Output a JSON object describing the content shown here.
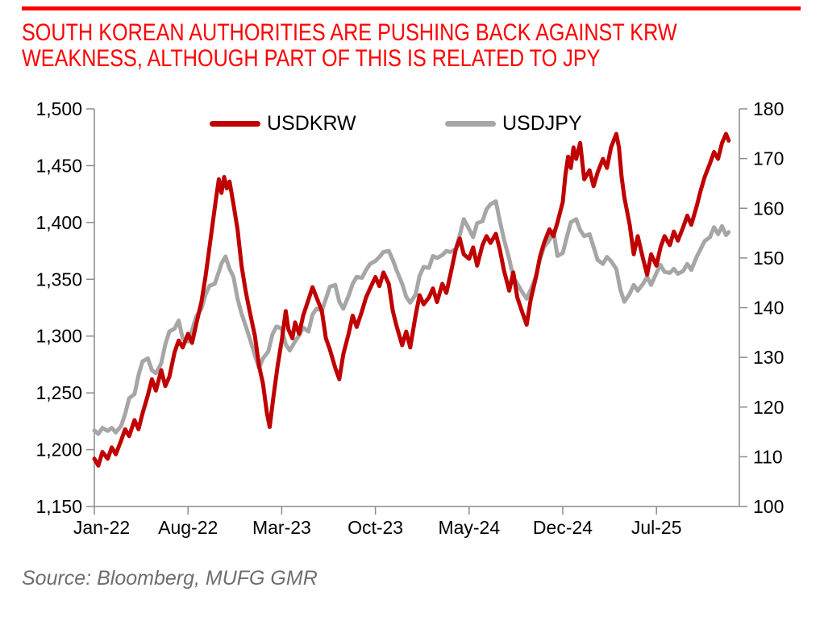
{
  "page": {
    "background": "#FFFFFF"
  },
  "header": {
    "rule_color": "#FF0000",
    "title_color": "#FF0000",
    "title_lines": [
      "SOUTH KOREAN AUTHORITIES ARE PUSHING BACK AGAINST KRW",
      "WEAKNESS, ALTHOUGH PART OF THIS IS RELATED TO JPY"
    ]
  },
  "legend": {
    "items": [
      {
        "label": "USDKRW",
        "color": "#C00000"
      },
      {
        "label": "USDJPY",
        "color": "#A6A6A6"
      }
    ]
  },
  "footer": {
    "source": "Source: Bloomberg, MUFG GMR"
  },
  "chart_data": {
    "type": "line",
    "title": "SOUTH KOREAN AUTHORITIES ARE PUSHING BACK AGAINST KRW WEAKNESS, ALTHOUGH PART OF THIS IS RELATED TO JPY",
    "grid": false,
    "legend_position": "top-center",
    "axis_color": "#8C8C8C",
    "x_unit": "months since Jan-2022",
    "x_tick_months": [
      0,
      7,
      14,
      21,
      28,
      35,
      42
    ],
    "x_tick_labels": [
      "Jan-22",
      "Aug-22",
      "Mar-23",
      "Oct-23",
      "May-24",
      "Dec-24",
      "Jul-25"
    ],
    "left_axis": {
      "series": "USDKRW",
      "min": 1150,
      "max": 1500,
      "values": [
        1150,
        1200,
        1250,
        1300,
        1350,
        1400,
        1450,
        1500
      ],
      "labels": [
        "1,150",
        "1,200",
        "1,250",
        "1,300",
        "1,350",
        "1,400",
        "1,450",
        "1,500"
      ]
    },
    "right_axis": {
      "series": "USDJPY",
      "min": 100,
      "max": 180,
      "values": [
        100,
        110,
        120,
        130,
        140,
        150,
        160,
        170,
        180
      ],
      "labels": [
        "100",
        "110",
        "120",
        "130",
        "140",
        "150",
        "160",
        "170",
        "180"
      ]
    },
    "series": [
      {
        "name": "USDKRW",
        "axis": "left",
        "color": "#C00000",
        "points": [
          [
            0,
            1192
          ],
          [
            0.3,
            1186
          ],
          [
            0.6,
            1198
          ],
          [
            1,
            1192
          ],
          [
            1.3,
            1202
          ],
          [
            1.6,
            1196
          ],
          [
            2,
            1208
          ],
          [
            2.3,
            1218
          ],
          [
            2.6,
            1212
          ],
          [
            3,
            1226
          ],
          [
            3.3,
            1218
          ],
          [
            3.6,
            1232
          ],
          [
            4,
            1248
          ],
          [
            4.3,
            1262
          ],
          [
            4.6,
            1252
          ],
          [
            5,
            1270
          ],
          [
            5.3,
            1256
          ],
          [
            5.6,
            1264
          ],
          [
            6,
            1286
          ],
          [
            6.3,
            1296
          ],
          [
            6.6,
            1290
          ],
          [
            7,
            1302
          ],
          [
            7.3,
            1294
          ],
          [
            7.6,
            1310
          ],
          [
            8,
            1330
          ],
          [
            8.3,
            1352
          ],
          [
            8.6,
            1378
          ],
          [
            8.9,
            1404
          ],
          [
            9.1,
            1422
          ],
          [
            9.3,
            1438
          ],
          [
            9.5,
            1426
          ],
          [
            9.7,
            1440
          ],
          [
            9.9,
            1430
          ],
          [
            10.1,
            1436
          ],
          [
            10.4,
            1416
          ],
          [
            10.7,
            1394
          ],
          [
            11,
            1362
          ],
          [
            11.3,
            1340
          ],
          [
            11.6,
            1322
          ],
          [
            12,
            1300
          ],
          [
            12.3,
            1274
          ],
          [
            12.6,
            1258
          ],
          [
            12.9,
            1232
          ],
          [
            13.1,
            1220
          ],
          [
            13.4,
            1248
          ],
          [
            13.7,
            1274
          ],
          [
            14,
            1296
          ],
          [
            14.3,
            1322
          ],
          [
            14.5,
            1306
          ],
          [
            14.8,
            1298
          ],
          [
            15,
            1312
          ],
          [
            15.3,
            1302
          ],
          [
            15.6,
            1318
          ],
          [
            16,
            1332
          ],
          [
            16.3,
            1343
          ],
          [
            16.6,
            1334
          ],
          [
            17,
            1322
          ],
          [
            17.3,
            1298
          ],
          [
            17.6,
            1288
          ],
          [
            18,
            1272
          ],
          [
            18.3,
            1262
          ],
          [
            18.6,
            1284
          ],
          [
            19,
            1302
          ],
          [
            19.3,
            1318
          ],
          [
            19.6,
            1308
          ],
          [
            20,
            1322
          ],
          [
            20.3,
            1334
          ],
          [
            20.6,
            1342
          ],
          [
            21,
            1352
          ],
          [
            21.3,
            1344
          ],
          [
            21.6,
            1356
          ],
          [
            22,
            1346
          ],
          [
            22.3,
            1322
          ],
          [
            22.6,
            1308
          ],
          [
            23,
            1292
          ],
          [
            23.3,
            1304
          ],
          [
            23.6,
            1290
          ],
          [
            24,
            1318
          ],
          [
            24.3,
            1336
          ],
          [
            24.6,
            1328
          ],
          [
            25,
            1334
          ],
          [
            25.3,
            1342
          ],
          [
            25.6,
            1330
          ],
          [
            26,
            1346
          ],
          [
            26.3,
            1338
          ],
          [
            26.6,
            1354
          ],
          [
            27,
            1376
          ],
          [
            27.3,
            1386
          ],
          [
            27.6,
            1372
          ],
          [
            28,
            1368
          ],
          [
            28.3,
            1378
          ],
          [
            28.6,
            1362
          ],
          [
            29,
            1380
          ],
          [
            29.3,
            1388
          ],
          [
            29.6,
            1382
          ],
          [
            30,
            1390
          ],
          [
            30.3,
            1376
          ],
          [
            30.6,
            1358
          ],
          [
            31,
            1340
          ],
          [
            31.3,
            1356
          ],
          [
            31.6,
            1334
          ],
          [
            32,
            1320
          ],
          [
            32.3,
            1310
          ],
          [
            32.6,
            1332
          ],
          [
            33,
            1352
          ],
          [
            33.3,
            1370
          ],
          [
            33.6,
            1382
          ],
          [
            34,
            1394
          ],
          [
            34.3,
            1388
          ],
          [
            34.6,
            1400
          ],
          [
            35,
            1418
          ],
          [
            35.2,
            1442
          ],
          [
            35.4,
            1458
          ],
          [
            35.6,
            1448
          ],
          [
            35.8,
            1466
          ],
          [
            36,
            1456
          ],
          [
            36.3,
            1470
          ],
          [
            36.6,
            1438
          ],
          [
            37,
            1446
          ],
          [
            37.3,
            1432
          ],
          [
            37.6,
            1444
          ],
          [
            38,
            1456
          ],
          [
            38.3,
            1448
          ],
          [
            38.6,
            1466
          ],
          [
            39,
            1478
          ],
          [
            39.2,
            1466
          ],
          [
            39.4,
            1440
          ],
          [
            39.6,
            1422
          ],
          [
            40,
            1398
          ],
          [
            40.3,
            1372
          ],
          [
            40.6,
            1388
          ],
          [
            41,
            1368
          ],
          [
            41.3,
            1354
          ],
          [
            41.6,
            1372
          ],
          [
            42,
            1362
          ],
          [
            42.3,
            1378
          ],
          [
            42.6,
            1388
          ],
          [
            43,
            1380
          ],
          [
            43.3,
            1392
          ],
          [
            43.6,
            1384
          ],
          [
            44,
            1396
          ],
          [
            44.3,
            1406
          ],
          [
            44.6,
            1398
          ],
          [
            45,
            1414
          ],
          [
            45.3,
            1428
          ],
          [
            45.6,
            1440
          ],
          [
            46,
            1452
          ],
          [
            46.3,
            1462
          ],
          [
            46.6,
            1456
          ],
          [
            46.9,
            1470
          ],
          [
            47.2,
            1478
          ],
          [
            47.4,
            1472
          ]
        ]
      },
      {
        "name": "USDJPY",
        "axis": "right",
        "color": "#A6A6A6",
        "points": [
          [
            0,
            115.3
          ],
          [
            0.3,
            114.6
          ],
          [
            0.6,
            115.8
          ],
          [
            1,
            115.2
          ],
          [
            1.3,
            115.8
          ],
          [
            1.6,
            114.9
          ],
          [
            2,
            116.2
          ],
          [
            2.3,
            118.6
          ],
          [
            2.6,
            121.8
          ],
          [
            3,
            122.6
          ],
          [
            3.3,
            126.4
          ],
          [
            3.6,
            129.2
          ],
          [
            4,
            129.8
          ],
          [
            4.3,
            127.4
          ],
          [
            4.6,
            126.8
          ],
          [
            5,
            128.8
          ],
          [
            5.3,
            132.6
          ],
          [
            5.6,
            135.2
          ],
          [
            6,
            135.8
          ],
          [
            6.3,
            137.4
          ],
          [
            6.6,
            133.8
          ],
          [
            7,
            133.2
          ],
          [
            7.3,
            135.4
          ],
          [
            7.6,
            138.2
          ],
          [
            8,
            139.8
          ],
          [
            8.3,
            142.6
          ],
          [
            8.6,
            144.4
          ],
          [
            9,
            144.8
          ],
          [
            9.3,
            147.2
          ],
          [
            9.5,
            148.9
          ],
          [
            9.8,
            150.3
          ],
          [
            10.1,
            147.8
          ],
          [
            10.4,
            146.2
          ],
          [
            10.7,
            141.8
          ],
          [
            11,
            138.8
          ],
          [
            11.3,
            136.4
          ],
          [
            11.6,
            133.9
          ],
          [
            12,
            130.4
          ],
          [
            12.3,
            127.9
          ],
          [
            12.6,
            129.8
          ],
          [
            13,
            131.2
          ],
          [
            13.3,
            134.6
          ],
          [
            13.6,
            136.2
          ],
          [
            14,
            135.8
          ],
          [
            14.3,
            132.6
          ],
          [
            14.6,
            131.4
          ],
          [
            15,
            133.2
          ],
          [
            15.3,
            134.4
          ],
          [
            15.6,
            136
          ],
          [
            16,
            135.2
          ],
          [
            16.3,
            138.6
          ],
          [
            16.6,
            139.8
          ],
          [
            17,
            139.4
          ],
          [
            17.3,
            141.8
          ],
          [
            17.6,
            144.2
          ],
          [
            18,
            144.6
          ],
          [
            18.3,
            141.2
          ],
          [
            18.6,
            139.8
          ],
          [
            19,
            142.4
          ],
          [
            19.3,
            144.8
          ],
          [
            19.6,
            146.2
          ],
          [
            20,
            146
          ],
          [
            20.3,
            147.6
          ],
          [
            20.6,
            148.8
          ],
          [
            21,
            149.4
          ],
          [
            21.3,
            150.2
          ],
          [
            21.6,
            151.2
          ],
          [
            22,
            151.4
          ],
          [
            22.3,
            149.6
          ],
          [
            22.6,
            147.4
          ],
          [
            23,
            144.8
          ],
          [
            23.3,
            142.2
          ],
          [
            23.6,
            141
          ],
          [
            24,
            142.6
          ],
          [
            24.3,
            146.4
          ],
          [
            24.6,
            148.2
          ],
          [
            25,
            148
          ],
          [
            25.3,
            150.4
          ],
          [
            25.6,
            150
          ],
          [
            26,
            150.6
          ],
          [
            26.3,
            151.4
          ],
          [
            26.6,
            151.2
          ],
          [
            27,
            151.8
          ],
          [
            27.3,
            154.6
          ],
          [
            27.6,
            157.8
          ],
          [
            28,
            155.8
          ],
          [
            28.3,
            154.2
          ],
          [
            28.6,
            157
          ],
          [
            29,
            157.4
          ],
          [
            29.3,
            159.8
          ],
          [
            29.6,
            160.8
          ],
          [
            30,
            161.4
          ],
          [
            30.3,
            157.4
          ],
          [
            30.6,
            153.8
          ],
          [
            31,
            149.8
          ],
          [
            31.3,
            146.2
          ],
          [
            31.6,
            144.8
          ],
          [
            32,
            143
          ],
          [
            32.3,
            141.8
          ],
          [
            32.6,
            143.6
          ],
          [
            33,
            146.4
          ],
          [
            33.3,
            149.8
          ],
          [
            33.6,
            152.2
          ],
          [
            34,
            153.6
          ],
          [
            34.3,
            155.4
          ],
          [
            34.6,
            150.4
          ],
          [
            35,
            151
          ],
          [
            35.3,
            154.2
          ],
          [
            35.6,
            157.2
          ],
          [
            36,
            157.8
          ],
          [
            36.3,
            155.6
          ],
          [
            36.6,
            154.4
          ],
          [
            37,
            154.8
          ],
          [
            37.3,
            152.2
          ],
          [
            37.6,
            149.6
          ],
          [
            38,
            148.8
          ],
          [
            38.3,
            150.2
          ],
          [
            38.6,
            149.4
          ],
          [
            39,
            147.8
          ],
          [
            39.3,
            143.6
          ],
          [
            39.6,
            141.2
          ],
          [
            40,
            142.8
          ],
          [
            40.3,
            144.6
          ],
          [
            40.6,
            143.4
          ],
          [
            41,
            144.8
          ],
          [
            41.3,
            146.2
          ],
          [
            41.6,
            144.6
          ],
          [
            42,
            147
          ],
          [
            42.3,
            148.6
          ],
          [
            42.6,
            147.2
          ],
          [
            43,
            147
          ],
          [
            43.3,
            147.8
          ],
          [
            43.6,
            146.8
          ],
          [
            44,
            147.4
          ],
          [
            44.3,
            148.8
          ],
          [
            44.6,
            147.6
          ],
          [
            45,
            150.2
          ],
          [
            45.3,
            151.8
          ],
          [
            45.6,
            153.4
          ],
          [
            46,
            154.2
          ],
          [
            46.3,
            156.2
          ],
          [
            46.6,
            154.8
          ],
          [
            46.9,
            156.4
          ],
          [
            47.2,
            154.6
          ],
          [
            47.4,
            155.2
          ]
        ]
      }
    ]
  }
}
